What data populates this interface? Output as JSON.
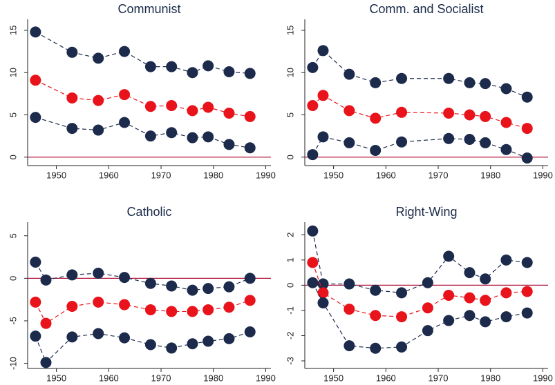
{
  "chart_data": [
    {
      "type": "line",
      "title": "Communist",
      "x": [
        1946,
        1953,
        1958,
        1963,
        1968,
        1972,
        1976,
        1979,
        1983,
        1987
      ],
      "series": [
        {
          "color": "#1c2a4c",
          "values": [
            14.8,
            12.4,
            11.7,
            12.5,
            10.7,
            10.7,
            10.0,
            10.8,
            10.1,
            9.9
          ]
        },
        {
          "color": "#e8131b",
          "values": [
            9.1,
            7.0,
            6.7,
            7.4,
            6.0,
            6.1,
            5.5,
            5.9,
            5.2,
            4.8
          ]
        },
        {
          "color": "#1c2a4c",
          "values": [
            4.7,
            3.4,
            3.2,
            4.1,
            2.5,
            2.9,
            2.3,
            2.4,
            1.5,
            1.1
          ]
        }
      ],
      "xlim": [
        1944.5,
        1991
      ],
      "xticks": [
        1950,
        1960,
        1970,
        1980,
        1990
      ],
      "ylim": [
        -1,
        16.3
      ],
      "yticks": [
        0,
        5,
        10,
        15
      ],
      "hline": 0,
      "hline_color": "#b0173c"
    },
    {
      "type": "line",
      "title": "Comm. and Socialist",
      "x": [
        1946,
        1948,
        1953,
        1958,
        1963,
        1972,
        1976,
        1979,
        1983,
        1987
      ],
      "series": [
        {
          "color": "#1c2a4c",
          "values": [
            10.6,
            12.6,
            9.8,
            8.8,
            9.3,
            9.3,
            8.8,
            8.7,
            8.1,
            7.1
          ]
        },
        {
          "color": "#e8131b",
          "values": [
            6.1,
            7.3,
            5.5,
            4.6,
            5.3,
            5.2,
            5.0,
            4.8,
            4.1,
            3.4
          ]
        },
        {
          "color": "#1c2a4c",
          "values": [
            0.3,
            2.4,
            1.7,
            0.8,
            1.8,
            2.2,
            2.1,
            1.7,
            0.9,
            -0.1
          ]
        }
      ],
      "xlim": [
        1944.5,
        1991
      ],
      "xticks": [
        1950,
        1960,
        1970,
        1980,
        1990
      ],
      "ylim": [
        -1,
        16.3
      ],
      "yticks": [
        0,
        5,
        10,
        15
      ],
      "hline": 0,
      "hline_color": "#b0173c"
    },
    {
      "type": "line",
      "title": "Catholic",
      "x": [
        1946,
        1948,
        1953,
        1958,
        1963,
        1968,
        1972,
        1976,
        1979,
        1983,
        1987
      ],
      "series": [
        {
          "color": "#1c2a4c",
          "values": [
            1.9,
            -0.2,
            0.4,
            0.6,
            0.1,
            -0.6,
            -0.9,
            -1.4,
            -1.2,
            -1.0,
            0.0
          ]
        },
        {
          "color": "#e8131b",
          "values": [
            -2.8,
            -5.3,
            -3.3,
            -2.8,
            -3.1,
            -3.7,
            -3.9,
            -3.9,
            -3.7,
            -3.4,
            -2.6
          ]
        },
        {
          "color": "#1c2a4c",
          "values": [
            -6.8,
            -9.9,
            -6.9,
            -6.5,
            -7.0,
            -7.8,
            -8.2,
            -7.7,
            -7.4,
            -7.1,
            -6.3
          ]
        }
      ],
      "xlim": [
        1944.5,
        1991
      ],
      "xticks": [
        1950,
        1960,
        1970,
        1980,
        1990
      ],
      "ylim": [
        -10.6,
        6.6
      ],
      "yticks": [
        -10,
        -5,
        0,
        5
      ],
      "hline": 0,
      "hline_color": "#b0173c"
    },
    {
      "type": "line",
      "title": "Right-Wing",
      "x": [
        1946,
        1948,
        1953,
        1958,
        1963,
        1968,
        1972,
        1976,
        1979,
        1983,
        1987
      ],
      "series": [
        {
          "color": "#1c2a4c",
          "values": [
            2.15,
            0.05,
            0.05,
            -0.2,
            -0.3,
            0.1,
            1.15,
            0.5,
            0.25,
            1.0,
            0.9
          ]
        },
        {
          "color": "#e8131b",
          "values": [
            0.9,
            -0.3,
            -0.95,
            -1.2,
            -1.25,
            -0.9,
            -0.4,
            -0.5,
            -0.6,
            -0.3,
            -0.25
          ]
        },
        {
          "color": "#1c2a4c",
          "values": [
            0.1,
            -0.7,
            -2.4,
            -2.5,
            -2.45,
            -1.8,
            -1.4,
            -1.2,
            -1.45,
            -1.25,
            -1.1
          ]
        }
      ],
      "xlim": [
        1944.5,
        1991
      ],
      "xticks": [
        1950,
        1960,
        1970,
        1980,
        1990
      ],
      "ylim": [
        -3.3,
        2.5
      ],
      "yticks": [
        -3,
        -2,
        -1,
        0,
        1,
        2
      ],
      "hline": 0,
      "hline_color": "#b0173c"
    }
  ]
}
